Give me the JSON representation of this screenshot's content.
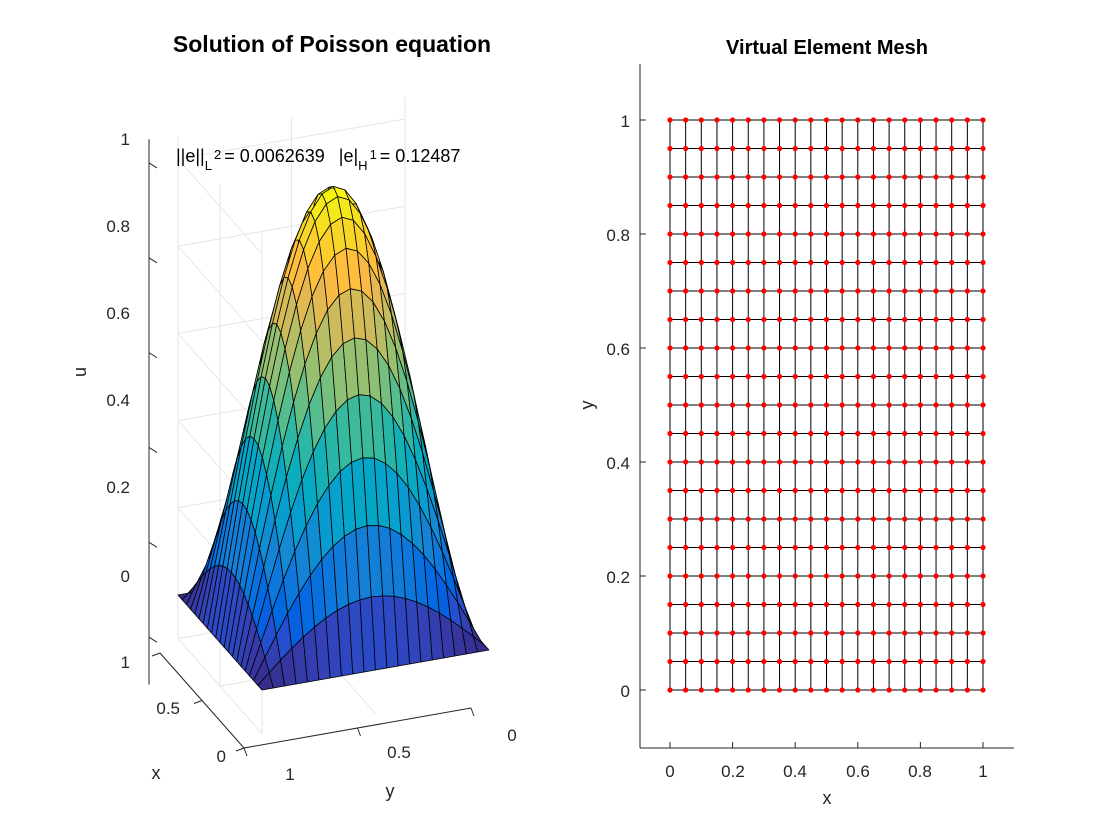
{
  "chart_data": [
    {
      "type": "surface",
      "title": "Solution of Poisson equation",
      "xlabel": "x",
      "ylabel": "y",
      "zlabel": "u",
      "xlim": [
        0,
        1
      ],
      "ylim": [
        0,
        1
      ],
      "zlim": [
        -0.1,
        1.05
      ],
      "xticks": [
        "0",
        "0.5",
        "1"
      ],
      "yticks": [
        "0",
        "0.5",
        "1"
      ],
      "zticks": [
        "0",
        "0.2",
        "0.4",
        "0.6",
        "0.8",
        "1"
      ],
      "grid": true,
      "colormap": "parula",
      "mesh_size": [
        21,
        21
      ],
      "function": "u = sin(pi*x) * sin(pi*y)",
      "peak_value": 1.0,
      "annotation": {
        "l2_norm": "||e||",
        "l2_sub": "L",
        "l2_sup": "2",
        "l2_value": "= 0.0062639",
        "h1_norm": "|e|",
        "h1_sub": "H",
        "h1_sup": "1",
        "h1_value": "= 0.12487"
      }
    },
    {
      "type": "scatter",
      "title": "Virtual Element Mesh",
      "xlabel": "x",
      "ylabel": "y",
      "xlim": [
        -0.1,
        1.1
      ],
      "ylim": [
        -0.1,
        1.1
      ],
      "xticks": [
        "0",
        "0.2",
        "0.4",
        "0.6",
        "0.8",
        "1"
      ],
      "yticks": [
        "0",
        "0.2",
        "0.4",
        "0.6",
        "0.8",
        "1"
      ],
      "grid_nodes": {
        "nx": 21,
        "ny": 21,
        "x_start": 0,
        "x_end": 1,
        "y_start": 0,
        "y_end": 1
      },
      "edge_color": "#000000",
      "node_color": "#ff0000"
    }
  ],
  "colors": {
    "background": "#ffffff",
    "axis": "#262626",
    "gridline": "#e6e6e6"
  }
}
